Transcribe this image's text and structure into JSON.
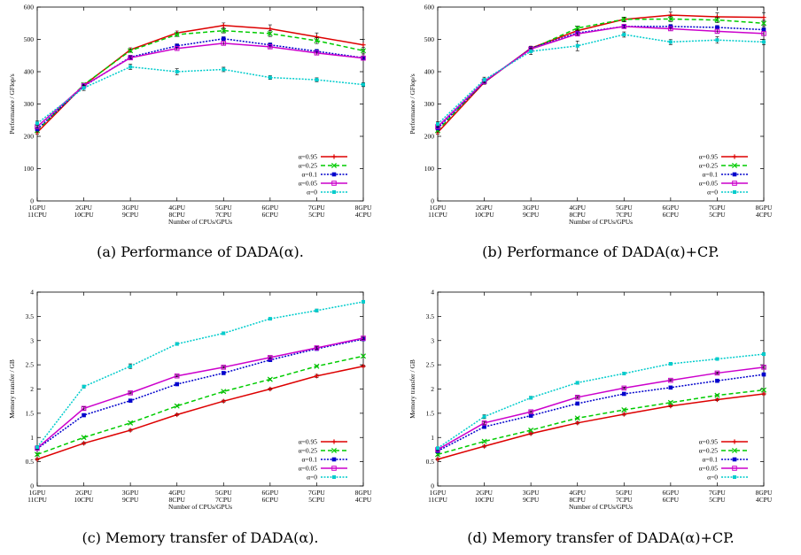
{
  "chart_data": [
    {
      "type": "line",
      "caption": "(a) Performance of DADA(α).",
      "ylabel": "Performance / GFlop/s",
      "xlabel": "Number of CPUs/GPUs",
      "categories": [
        [
          "1GPU",
          "11CPU"
        ],
        [
          "2GPU",
          "10CPU"
        ],
        [
          "3GPU",
          "9CPU"
        ],
        [
          "4GPU",
          "8CPU"
        ],
        [
          "5GPU",
          "7CPU"
        ],
        [
          "6GPU",
          "6CPU"
        ],
        [
          "7GPU",
          "5CPU"
        ],
        [
          "8GPU",
          "4CPU"
        ]
      ],
      "ylim": [
        0,
        600
      ],
      "yticks": [
        0,
        100,
        200,
        300,
        400,
        500,
        600
      ],
      "legend_position": "bottom-right",
      "series": [
        {
          "name": "α=0.95",
          "color": "#dd0000",
          "dash": "solid",
          "values": [
            212,
            358,
            468,
            520,
            543,
            533,
            508,
            483
          ],
          "errors": [
            5,
            6,
            6,
            6,
            8,
            12,
            12,
            17
          ]
        },
        {
          "name": "α=0.25",
          "color": "#00cc00",
          "dash": "dashed",
          "values": [
            218,
            360,
            465,
            515,
            527,
            518,
            496,
            465
          ],
          "errors": [
            5,
            5,
            5,
            6,
            7,
            9,
            9,
            10
          ]
        },
        {
          "name": "α=0.1",
          "color": "#0000cc",
          "dash": "dotted",
          "values": [
            222,
            355,
            445,
            480,
            502,
            483,
            463,
            443
          ],
          "errors": [
            5,
            5,
            6,
            6,
            6,
            6,
            6,
            6
          ]
        },
        {
          "name": "α=0.05",
          "color": "#cc00cc",
          "dash": "solid",
          "values": [
            230,
            357,
            443,
            472,
            488,
            477,
            458,
            442
          ],
          "errors": [
            5,
            5,
            5,
            6,
            6,
            6,
            6,
            6
          ]
        },
        {
          "name": "α=0",
          "color": "#00cccc",
          "dash": "dotted",
          "values": [
            240,
            350,
            415,
            400,
            407,
            382,
            375,
            360
          ],
          "errors": [
            7,
            8,
            8,
            9,
            7,
            6,
            6,
            6
          ]
        }
      ]
    },
    {
      "type": "line",
      "caption": "(b) Performance of DADA(α)+CP.",
      "ylabel": "Performance / GFlop/s",
      "xlabel": "Number of CPUs/GPUs",
      "categories": [
        [
          "1GPU",
          "11CPU"
        ],
        [
          "2GPU",
          "10CPU"
        ],
        [
          "3GPU",
          "9CPU"
        ],
        [
          "4GPU",
          "8CPU"
        ],
        [
          "5GPU",
          "7CPU"
        ],
        [
          "6GPU",
          "6CPU"
        ],
        [
          "7GPU",
          "5CPU"
        ],
        [
          "8GPU",
          "4CPU"
        ]
      ],
      "ylim": [
        0,
        600
      ],
      "yticks": [
        0,
        100,
        200,
        300,
        400,
        500,
        600
      ],
      "legend_position": "bottom-right",
      "series": [
        {
          "name": "α=0.95",
          "color": "#dd0000",
          "dash": "solid",
          "values": [
            212,
            367,
            473,
            527,
            562,
            575,
            570,
            568
          ],
          "errors": [
            5,
            6,
            6,
            6,
            7,
            10,
            12,
            15
          ]
        },
        {
          "name": "α=0.25",
          "color": "#00cc00",
          "dash": "dashed",
          "values": [
            218,
            370,
            470,
            535,
            562,
            563,
            560,
            550
          ],
          "errors": [
            5,
            6,
            6,
            6,
            7,
            8,
            8,
            9
          ]
        },
        {
          "name": "α=0.1",
          "color": "#0000cc",
          "dash": "dotted",
          "values": [
            225,
            368,
            472,
            520,
            540,
            540,
            537,
            530
          ],
          "errors": [
            5,
            6,
            6,
            6,
            6,
            6,
            6,
            6
          ]
        },
        {
          "name": "α=0.05",
          "color": "#cc00cc",
          "dash": "solid",
          "values": [
            230,
            370,
            470,
            517,
            540,
            533,
            525,
            518
          ],
          "errors": [
            5,
            6,
            6,
            6,
            6,
            6,
            6,
            6
          ]
        },
        {
          "name": "α=0",
          "color": "#00cccc",
          "dash": "dotted",
          "values": [
            238,
            375,
            463,
            480,
            515,
            492,
            498,
            492
          ],
          "errors": [
            7,
            8,
            10,
            15,
            8,
            8,
            10,
            8
          ]
        }
      ]
    },
    {
      "type": "line",
      "caption": "(c) Memory transfer of DADA(α).",
      "ylabel": "Memory transfer / GB",
      "xlabel": "Number of CPUs/GPUs",
      "categories": [
        [
          "1GPU",
          "11CPU"
        ],
        [
          "2GPU",
          "10CPU"
        ],
        [
          "3GPU",
          "9CPU"
        ],
        [
          "4GPU",
          "8CPU"
        ],
        [
          "5GPU",
          "7CPU"
        ],
        [
          "6GPU",
          "6CPU"
        ],
        [
          "7GPU",
          "5CPU"
        ],
        [
          "8GPU",
          "4CPU"
        ]
      ],
      "ylim": [
        0,
        4
      ],
      "yticks": [
        0,
        0.5,
        1,
        1.5,
        2,
        2.5,
        3,
        3.5,
        4
      ],
      "legend_position": "bottom-right",
      "series": [
        {
          "name": "α=0.95",
          "color": "#dd0000",
          "dash": "solid",
          "values": [
            0.55,
            0.88,
            1.15,
            1.47,
            1.75,
            2.0,
            2.27,
            2.47
          ],
          "errors": [
            0.02,
            0.02,
            0.02,
            0.02,
            0.02,
            0.02,
            0.03,
            0.02
          ]
        },
        {
          "name": "α=0.25",
          "color": "#00cc00",
          "dash": "dashed",
          "values": [
            0.65,
            1.0,
            1.3,
            1.65,
            1.95,
            2.2,
            2.47,
            2.68
          ],
          "errors": [
            0.02,
            0.02,
            0.02,
            0.02,
            0.02,
            0.02,
            0.02,
            0.02
          ]
        },
        {
          "name": "α=0.1",
          "color": "#0000cc",
          "dash": "dotted",
          "values": [
            0.77,
            1.46,
            1.76,
            2.1,
            2.33,
            2.6,
            2.83,
            3.03
          ],
          "errors": [
            0.02,
            0.03,
            0.02,
            0.02,
            0.02,
            0.02,
            0.03,
            0.03
          ]
        },
        {
          "name": "α=0.05",
          "color": "#cc00cc",
          "dash": "solid",
          "values": [
            0.78,
            1.6,
            1.92,
            2.27,
            2.45,
            2.65,
            2.85,
            3.05
          ],
          "errors": [
            0.02,
            0.03,
            0.02,
            0.02,
            0.02,
            0.02,
            0.03,
            0.03
          ]
        },
        {
          "name": "α=0",
          "color": "#00cccc",
          "dash": "dotted",
          "values": [
            0.8,
            2.05,
            2.47,
            2.93,
            3.15,
            3.45,
            3.62,
            3.8
          ],
          "errors": [
            0.03,
            0.03,
            0.05,
            0.03,
            0.03,
            0.02,
            0.03,
            0.02
          ]
        }
      ]
    },
    {
      "type": "line",
      "caption": "(d) Memory transfer of DADA(α)+CP.",
      "ylabel": "Memory transfer / GB",
      "xlabel": "Number of CPUs/GPUs",
      "categories": [
        [
          "1GPU",
          "11CPU"
        ],
        [
          "2GPU",
          "10CPU"
        ],
        [
          "3GPU",
          "9CPU"
        ],
        [
          "4GPU",
          "8CPU"
        ],
        [
          "5GPU",
          "7CPU"
        ],
        [
          "6GPU",
          "6CPU"
        ],
        [
          "7GPU",
          "5CPU"
        ],
        [
          "8GPU",
          "4CPU"
        ]
      ],
      "ylim": [
        0,
        4
      ],
      "yticks": [
        0,
        0.5,
        1,
        1.5,
        2,
        2.5,
        3,
        3.5,
        4
      ],
      "legend_position": "bottom-right",
      "series": [
        {
          "name": "α=0.95",
          "color": "#dd0000",
          "dash": "solid",
          "values": [
            0.55,
            0.82,
            1.08,
            1.3,
            1.48,
            1.65,
            1.78,
            1.9
          ],
          "errors": [
            0.02,
            0.02,
            0.02,
            0.02,
            0.02,
            0.02,
            0.02,
            0.02
          ]
        },
        {
          "name": "α=0.25",
          "color": "#00cc00",
          "dash": "dashed",
          "values": [
            0.65,
            0.92,
            1.15,
            1.4,
            1.57,
            1.72,
            1.87,
            1.98
          ],
          "errors": [
            0.02,
            0.02,
            0.02,
            0.02,
            0.02,
            0.02,
            0.02,
            0.02
          ]
        },
        {
          "name": "α=0.1",
          "color": "#0000cc",
          "dash": "dotted",
          "values": [
            0.72,
            1.22,
            1.45,
            1.7,
            1.9,
            2.03,
            2.17,
            2.3
          ],
          "errors": [
            0.02,
            0.03,
            0.02,
            0.02,
            0.02,
            0.02,
            0.02,
            0.02
          ]
        },
        {
          "name": "α=0.05",
          "color": "#cc00cc",
          "dash": "solid",
          "values": [
            0.75,
            1.3,
            1.53,
            1.83,
            2.02,
            2.18,
            2.33,
            2.45
          ],
          "errors": [
            0.02,
            0.03,
            0.02,
            0.02,
            0.02,
            0.02,
            0.02,
            0.02
          ]
        },
        {
          "name": "α=0",
          "color": "#00cccc",
          "dash": "dotted",
          "values": [
            0.78,
            1.43,
            1.82,
            2.13,
            2.32,
            2.52,
            2.62,
            2.72
          ],
          "errors": [
            0.02,
            0.04,
            0.03,
            0.03,
            0.03,
            0.03,
            0.02,
            0.03
          ]
        }
      ]
    }
  ]
}
